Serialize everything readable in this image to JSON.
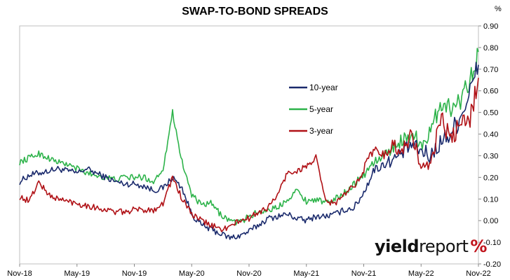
{
  "chart_data": {
    "type": "line",
    "title": "SWAP-TO-BOND SPREADS",
    "unit": "%",
    "x_ticks": [
      "Nov-18",
      "May-19",
      "Nov-19",
      "May-20",
      "Nov-20",
      "May-21",
      "Nov-21",
      "May-22",
      "Nov-22"
    ],
    "y_ticks": [
      "0.90",
      "0.80",
      "0.70",
      "0.60",
      "0.50",
      "0.40",
      "0.30",
      "0.20",
      "0.10",
      "0.00",
      "-0.10",
      "-0.20"
    ],
    "ylim": [
      -0.2,
      0.9
    ],
    "xlim": [
      "2018-11",
      "2022-11"
    ],
    "y_axis_side": "right",
    "grid": false,
    "legend_position": "center",
    "series": [
      {
        "name": "10-year",
        "color": "#1a2a6c",
        "points": [
          [
            "2018-11",
            0.18
          ],
          [
            "2018-12",
            0.21
          ],
          [
            "2019-01",
            0.22
          ],
          [
            "2019-02",
            0.23
          ],
          [
            "2019-03",
            0.24
          ],
          [
            "2019-04",
            0.23
          ],
          [
            "2019-05",
            0.22
          ],
          [
            "2019-06",
            0.24
          ],
          [
            "2019-07",
            0.22
          ],
          [
            "2019-08",
            0.2
          ],
          [
            "2019-09",
            0.18
          ],
          [
            "2019-10",
            0.17
          ],
          [
            "2019-11",
            0.17
          ],
          [
            "2019-12",
            0.16
          ],
          [
            "2020-01",
            0.14
          ],
          [
            "2020-02",
            0.15
          ],
          [
            "2020-03",
            0.2
          ],
          [
            "2020-04",
            0.15
          ],
          [
            "2020-05",
            0.03
          ],
          [
            "2020-06",
            -0.02
          ],
          [
            "2020-07",
            -0.04
          ],
          [
            "2020-08",
            -0.06
          ],
          [
            "2020-09",
            -0.08
          ],
          [
            "2020-10",
            -0.07
          ],
          [
            "2020-11",
            -0.05
          ],
          [
            "2020-12",
            -0.02
          ],
          [
            "2021-01",
            0.01
          ],
          [
            "2021-02",
            0.02
          ],
          [
            "2021-03",
            0.03
          ],
          [
            "2021-04",
            0.01
          ],
          [
            "2021-05",
            0.0
          ],
          [
            "2021-06",
            0.02
          ],
          [
            "2021-07",
            0.02
          ],
          [
            "2021-08",
            0.03
          ],
          [
            "2021-09",
            0.05
          ],
          [
            "2021-10",
            0.06
          ],
          [
            "2021-11",
            0.13
          ],
          [
            "2021-12",
            0.23
          ],
          [
            "2022-01",
            0.26
          ],
          [
            "2022-02",
            0.28
          ],
          [
            "2022-03",
            0.31
          ],
          [
            "2022-04",
            0.35
          ],
          [
            "2022-05",
            0.32
          ],
          [
            "2022-06",
            0.3
          ],
          [
            "2022-07",
            0.36
          ],
          [
            "2022-08",
            0.4
          ],
          [
            "2022-09",
            0.47
          ],
          [
            "2022-10",
            0.58
          ],
          [
            "2022-11",
            0.72
          ]
        ]
      },
      {
        "name": "5-year",
        "color": "#2db34a",
        "points": [
          [
            "2018-11",
            0.27
          ],
          [
            "2018-12",
            0.29
          ],
          [
            "2019-01",
            0.31
          ],
          [
            "2019-02",
            0.29
          ],
          [
            "2019-03",
            0.27
          ],
          [
            "2019-04",
            0.26
          ],
          [
            "2019-05",
            0.24
          ],
          [
            "2019-06",
            0.22
          ],
          [
            "2019-07",
            0.21
          ],
          [
            "2019-08",
            0.2
          ],
          [
            "2019-09",
            0.19
          ],
          [
            "2019-10",
            0.2
          ],
          [
            "2019-11",
            0.2
          ],
          [
            "2019-12",
            0.2
          ],
          [
            "2020-01",
            0.18
          ],
          [
            "2020-02",
            0.24
          ],
          [
            "2020-03",
            0.5
          ],
          [
            "2020-04",
            0.27
          ],
          [
            "2020-05",
            0.12
          ],
          [
            "2020-06",
            0.07
          ],
          [
            "2020-07",
            0.08
          ],
          [
            "2020-08",
            0.03
          ],
          [
            "2020-09",
            0.0
          ],
          [
            "2020-10",
            -0.01
          ],
          [
            "2020-11",
            0.02
          ],
          [
            "2020-12",
            0.04
          ],
          [
            "2021-01",
            0.05
          ],
          [
            "2021-02",
            0.06
          ],
          [
            "2021-03",
            0.1
          ],
          [
            "2021-04",
            0.14
          ],
          [
            "2021-05",
            0.09
          ],
          [
            "2021-06",
            0.1
          ],
          [
            "2021-07",
            0.08
          ],
          [
            "2021-08",
            0.1
          ],
          [
            "2021-09",
            0.13
          ],
          [
            "2021-10",
            0.17
          ],
          [
            "2021-11",
            0.21
          ],
          [
            "2021-12",
            0.27
          ],
          [
            "2022-01",
            0.29
          ],
          [
            "2022-02",
            0.34
          ],
          [
            "2022-03",
            0.37
          ],
          [
            "2022-04",
            0.4
          ],
          [
            "2022-05",
            0.36
          ],
          [
            "2022-06",
            0.4
          ],
          [
            "2022-07",
            0.55
          ],
          [
            "2022-08",
            0.52
          ],
          [
            "2022-09",
            0.55
          ],
          [
            "2022-10",
            0.65
          ],
          [
            "2022-11",
            0.78
          ]
        ]
      },
      {
        "name": "3-year",
        "color": "#b01116",
        "points": [
          [
            "2018-11",
            0.11
          ],
          [
            "2018-12",
            0.09
          ],
          [
            "2019-01",
            0.18
          ],
          [
            "2019-02",
            0.12
          ],
          [
            "2019-03",
            0.1
          ],
          [
            "2019-04",
            0.09
          ],
          [
            "2019-05",
            0.08
          ],
          [
            "2019-06",
            0.07
          ],
          [
            "2019-07",
            0.06
          ],
          [
            "2019-08",
            0.05
          ],
          [
            "2019-09",
            0.04
          ],
          [
            "2019-10",
            0.04
          ],
          [
            "2019-11",
            0.05
          ],
          [
            "2019-12",
            0.05
          ],
          [
            "2020-01",
            0.05
          ],
          [
            "2020-02",
            0.08
          ],
          [
            "2020-03",
            0.2
          ],
          [
            "2020-04",
            0.1
          ],
          [
            "2020-05",
            0.03
          ],
          [
            "2020-06",
            0.0
          ],
          [
            "2020-07",
            -0.02
          ],
          [
            "2020-08",
            -0.04
          ],
          [
            "2020-09",
            -0.03
          ],
          [
            "2020-10",
            0.0
          ],
          [
            "2020-11",
            0.01
          ],
          [
            "2020-12",
            0.04
          ],
          [
            "2021-01",
            0.06
          ],
          [
            "2021-02",
            0.12
          ],
          [
            "2021-03",
            0.22
          ],
          [
            "2021-04",
            0.23
          ],
          [
            "2021-05",
            0.25
          ],
          [
            "2021-06",
            0.29
          ],
          [
            "2021-07",
            0.09
          ],
          [
            "2021-08",
            0.08
          ],
          [
            "2021-09",
            0.12
          ],
          [
            "2021-10",
            0.16
          ],
          [
            "2021-11",
            0.24
          ],
          [
            "2021-12",
            0.33
          ],
          [
            "2022-01",
            0.3
          ],
          [
            "2022-02",
            0.35
          ],
          [
            "2022-03",
            0.32
          ],
          [
            "2022-04",
            0.4
          ],
          [
            "2022-05",
            0.25
          ],
          [
            "2022-06",
            0.24
          ],
          [
            "2022-07",
            0.48
          ],
          [
            "2022-08",
            0.38
          ],
          [
            "2022-09",
            0.43
          ],
          [
            "2022-10",
            0.46
          ],
          [
            "2022-11",
            0.66
          ]
        ]
      }
    ]
  },
  "brand": {
    "part1": "yield",
    "part2": "report",
    "part3": "%"
  }
}
